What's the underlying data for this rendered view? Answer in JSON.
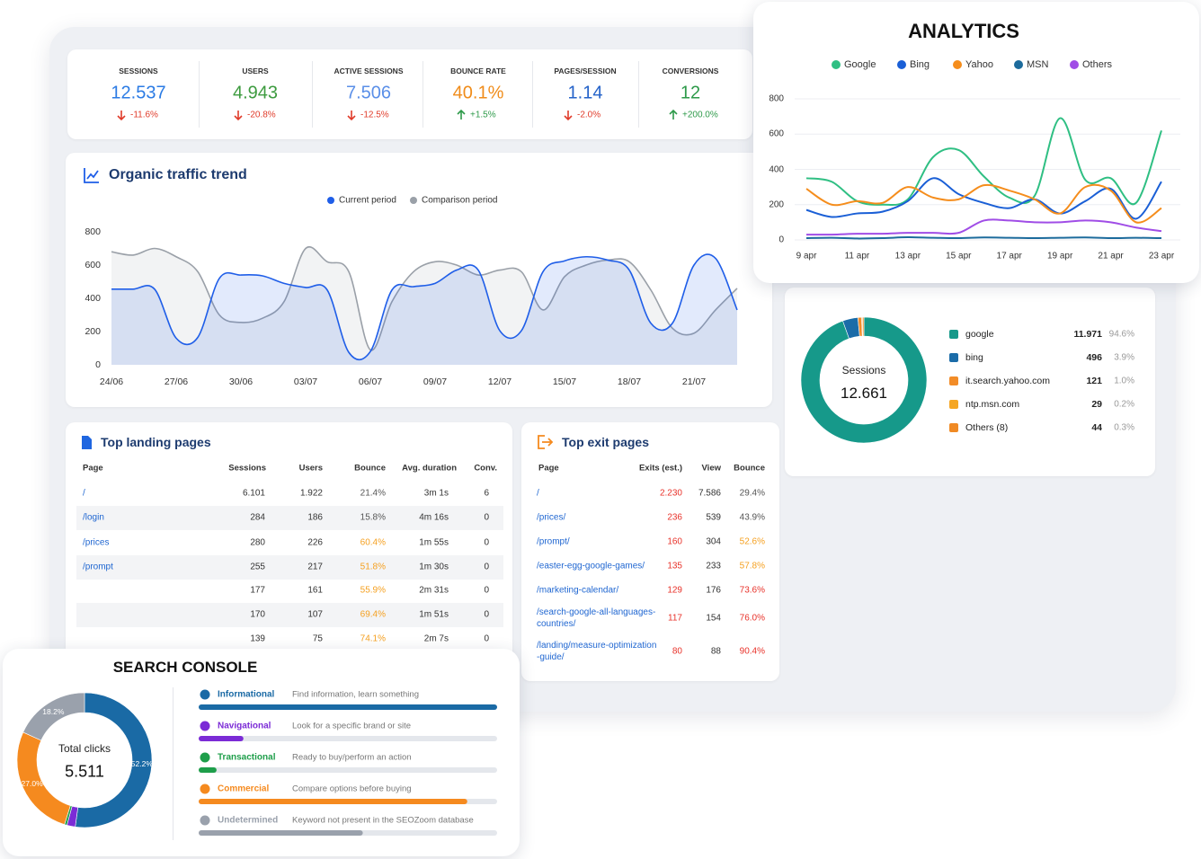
{
  "kpis": [
    {
      "label": "SESSIONS",
      "value": "12.537",
      "delta": "-11.6%",
      "color": "#2b7be4"
    },
    {
      "label": "USERS",
      "value": "4.943",
      "delta": "-20.8%",
      "color": "#3d9b3f"
    },
    {
      "label": "ACTIVE SESSIONS",
      "value": "7.506",
      "delta": "-12.5%",
      "color": "#5a8fe8"
    },
    {
      "label": "BOUNCE RATE",
      "value": "40.1%",
      "delta": "+1.5%",
      "color": "#f08c1a"
    },
    {
      "label": "PAGES/SESSION",
      "value": "1.14",
      "delta": "-2.0%",
      "color": "#2563c9"
    },
    {
      "label": "CONVERSIONS",
      "value": "12",
      "delta": "+200.0%",
      "color": "#2e9a4a"
    }
  ],
  "chart_data": [
    {
      "type": "line",
      "title": "Organic traffic trend",
      "categories": [
        "24/06",
        null,
        null,
        "27/06",
        null,
        null,
        "30/06",
        null,
        null,
        "03/07",
        null,
        null,
        "06/07",
        null,
        null,
        "09/07",
        null,
        null,
        "12/07",
        null,
        null,
        "15/07",
        null,
        null,
        "18/07",
        null,
        null,
        "21/07",
        null,
        null
      ],
      "series": [
        {
          "name": "Current period",
          "color": "#1f5ee8",
          "values": [
            455,
            455,
            455,
            160,
            165,
            520,
            540,
            535,
            490,
            465,
            450,
            75,
            80,
            450,
            470,
            490,
            570,
            570,
            205,
            205,
            560,
            625,
            650,
            630,
            570,
            250,
            250,
            600,
            640,
            330
          ]
        },
        {
          "name": "Comparison period",
          "color": "#9aa0a8",
          "values": [
            680,
            660,
            700,
            650,
            560,
            300,
            255,
            280,
            380,
            700,
            620,
            560,
            90,
            380,
            560,
            620,
            600,
            540,
            570,
            560,
            330,
            530,
            600,
            630,
            620,
            450,
            220,
            190,
            330,
            460
          ]
        }
      ],
      "ylim": [
        0,
        800
      ],
      "yticks": [
        0,
        200,
        400,
        600,
        800
      ],
      "grid": false
    },
    {
      "type": "line",
      "title": "ANALYTICS",
      "categories": [
        "9 apr",
        null,
        "11 apr",
        null,
        "13 apr",
        null,
        "15 apr",
        null,
        "17 apr",
        null,
        "19 apr",
        null,
        "21 apr",
        null,
        "23 apr"
      ],
      "series": [
        {
          "name": "Google",
          "color": "#2fbf83",
          "values": [
            350,
            330,
            220,
            200,
            230,
            470,
            510,
            360,
            240,
            250,
            690,
            340,
            350,
            210,
            620
          ]
        },
        {
          "name": "Bing",
          "color": "#1a5fd6",
          "values": [
            170,
            130,
            150,
            160,
            220,
            350,
            260,
            210,
            180,
            230,
            150,
            220,
            290,
            120,
            330
          ]
        },
        {
          "name": "Yahoo",
          "color": "#f58d1c",
          "values": [
            290,
            200,
            220,
            210,
            300,
            240,
            230,
            310,
            280,
            230,
            150,
            300,
            280,
            100,
            180
          ]
        },
        {
          "name": "MSN",
          "color": "#1c6b9c",
          "values": [
            10,
            12,
            8,
            10,
            15,
            12,
            10,
            14,
            12,
            10,
            12,
            14,
            10,
            12,
            10
          ]
        },
        {
          "name": "Others",
          "color": "#a04de6",
          "values": [
            30,
            30,
            35,
            35,
            40,
            40,
            40,
            110,
            110,
            100,
            100,
            110,
            100,
            70,
            50
          ]
        }
      ],
      "ylim": [
        0,
        800
      ],
      "yticks": [
        0,
        200,
        400,
        600,
        800
      ],
      "grid": true
    },
    {
      "type": "donut",
      "categories": [
        "google",
        "bing",
        "it.search.yahoo.com",
        "ntp.msn.com",
        "Others (8)"
      ],
      "values": [
        11971,
        496,
        121,
        29,
        44
      ],
      "value_labels": [
        "11.971",
        "496",
        "121",
        "29",
        "44"
      ],
      "shares": [
        "94.6%",
        "3.9%",
        "1.0%",
        "0.2%",
        "0.3%"
      ],
      "colors": [
        "#16998a",
        "#1b6ca8",
        "#f28c28",
        "#f5a623",
        "#f08a24"
      ],
      "center_label": "Sessions",
      "center_value": "12.661"
    },
    {
      "type": "donut",
      "title": "SEARCH CONSOLE",
      "categories": [
        "Informational",
        "Navigational",
        "Transactional",
        "Commercial",
        "Undetermined"
      ],
      "descriptions": [
        "Find information, learn something",
        "Look for a specific brand or site",
        "Ready to buy/perform an action",
        "Compare options before buying",
        "Keyword not present in the SEOZoom database"
      ],
      "values": [
        52.2,
        2.0,
        0.6,
        27.0,
        18.2
      ],
      "value_labels": [
        "52.2%",
        null,
        null,
        "27.0%",
        "18.2%"
      ],
      "colors": [
        "#1a6aa5",
        "#7b2bd6",
        "#1e9e4a",
        "#f58a1f",
        "#9aa1ac"
      ],
      "bars": [
        100,
        15,
        6,
        90,
        55
      ],
      "center_label": "Total clicks",
      "center_value": "5.511"
    }
  ],
  "landing_pages": {
    "title": "Top landing pages",
    "columns": [
      "Page",
      "Sessions",
      "Users",
      "Bounce",
      "Avg. duration",
      "Conv."
    ],
    "rows": [
      [
        "/",
        "6.101",
        "1.922",
        "21.4%",
        "3m 1s",
        "6"
      ],
      [
        "/login",
        "284",
        "186",
        "15.8%",
        "4m 16s",
        "0"
      ],
      [
        "/prices",
        "280",
        "226",
        "60.4%",
        "1m 55s",
        "0"
      ],
      [
        "/prompt",
        "255",
        "217",
        "51.8%",
        "1m 30s",
        "0"
      ],
      [
        null,
        "177",
        "161",
        "55.9%",
        "2m 31s",
        "0"
      ],
      [
        null,
        "170",
        "107",
        "69.4%",
        "1m 51s",
        "0"
      ],
      [
        null,
        "139",
        "75",
        "74.1%",
        "2m 7s",
        "0"
      ]
    ],
    "bounce_colors": [
      "#555555",
      "#555555",
      "#f5a020",
      "#f5a020",
      "#f5a020",
      "#f5a020",
      "#f5a020"
    ]
  },
  "exit_pages": {
    "title": "Top exit pages",
    "columns": [
      "Page",
      "Exits (est.)",
      "View",
      "Bounce"
    ],
    "rows": [
      [
        "/",
        "2.230",
        "7.586",
        "29.4%"
      ],
      [
        "/prices/",
        "236",
        "539",
        "43.9%"
      ],
      [
        "/prompt/",
        "160",
        "304",
        "52.6%"
      ],
      [
        "/easter-egg-google-games/",
        "135",
        "233",
        "57.8%"
      ],
      [
        "/marketing-calendar/",
        "129",
        "176",
        "73.6%"
      ],
      [
        "/search-google-all-languages-countries/",
        "117",
        "154",
        "76.0%"
      ],
      [
        "/landing/measure-optimization-guide/",
        "80",
        "88",
        "90.4%"
      ]
    ],
    "exits_color": "#e8322a",
    "bounce_colors": [
      "#555555",
      "#555555",
      "#f5a020",
      "#f5a020",
      "#e8322a",
      "#e8322a",
      "#e8322a"
    ]
  }
}
